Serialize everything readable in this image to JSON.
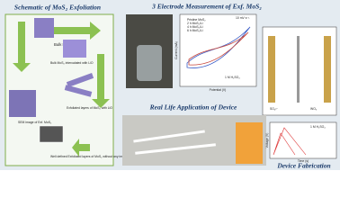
{
  "titles": {
    "exfoliation": "Schematic of MoS₂ Exfoliation",
    "measurement": "3 Electrode Measurement of Exf. MoS₂",
    "application": "Real Life Application of Device",
    "fabrication": "Device Fabrication"
  },
  "exfoliation_steps": {
    "bulk": "Bulk MoS₂",
    "intercalated": "Bulk MoS₂ intercalated with LiO",
    "exfoliated": "Exfoliated layers of MoS₂ with LiO",
    "sem": "SEM image of Exf. MoS₂",
    "final": "Well defined Exfoliated layers of MoS₂ without any impurities"
  },
  "cv_plot": {
    "x_label": "Potential (V)",
    "y_label": "Current (mA)",
    "electrolyte": "1 M H₂SO₄",
    "scan_rate": "10 mV s⁻¹",
    "legend": [
      "Pristine MoS₂",
      "2 h MoS₂/Li",
      "4 h MoS₂/Li",
      "6 h MoS₂/Li"
    ]
  },
  "device": {
    "ion": "SO₄²⁻",
    "counter": "WO₃"
  },
  "gcd_plot": {
    "x_label": "Time (s)",
    "y_label": "Voltage (V)",
    "electrolyte": "1 M H₂SO₄"
  }
}
